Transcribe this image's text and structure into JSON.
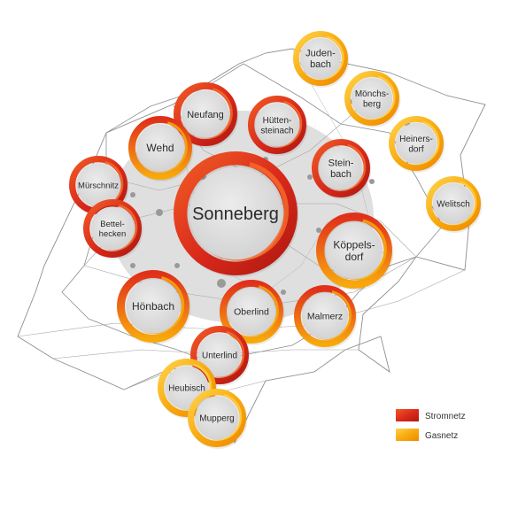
{
  "colors": {
    "strom": "#e2371b",
    "strom_dark": "#b81e10",
    "gas": "#f6a400",
    "gas_light": "#ffc83a",
    "inner_fill": "#dcdcdc",
    "cloud": "#d0d0d0",
    "network_line": "#8e8e8e"
  },
  "nodes": [
    {
      "id": "sonneberg",
      "lines": [
        "Sonneberg"
      ],
      "style": "strom"
    },
    {
      "id": "judenbach",
      "lines": [
        "Juden-",
        "bach"
      ],
      "style": "gas"
    },
    {
      "id": "moenchsberg",
      "lines": [
        "Mönchs-",
        "berg"
      ],
      "style": "gas"
    },
    {
      "id": "heinersdorf",
      "lines": [
        "Heiners-",
        "dorf"
      ],
      "style": "gas"
    },
    {
      "id": "welitsch",
      "lines": [
        "Welitsch"
      ],
      "style": "gas"
    },
    {
      "id": "neufang",
      "lines": [
        "Neufang"
      ],
      "style": "strom"
    },
    {
      "id": "huettensteinach",
      "lines": [
        "Hütten-",
        "steinach"
      ],
      "style": "strom"
    },
    {
      "id": "wehd",
      "lines": [
        "Wehd"
      ],
      "style": "mixed"
    },
    {
      "id": "steinbach",
      "lines": [
        "Stein-",
        "bach"
      ],
      "style": "strom"
    },
    {
      "id": "muerschnitz",
      "lines": [
        "Mürschnitz"
      ],
      "style": "strom"
    },
    {
      "id": "bettelhecken",
      "lines": [
        "Bettel-",
        "hecken"
      ],
      "style": "strom"
    },
    {
      "id": "koeppelsdorf",
      "lines": [
        "Köppels-",
        "dorf"
      ],
      "style": "mixed"
    },
    {
      "id": "hoenbach",
      "lines": [
        "Hönbach"
      ],
      "style": "mixed"
    },
    {
      "id": "oberlind",
      "lines": [
        "Oberlind"
      ],
      "style": "mixed"
    },
    {
      "id": "malmerz",
      "lines": [
        "Malmerz"
      ],
      "style": "mixed"
    },
    {
      "id": "unterlind",
      "lines": [
        "Unterlind"
      ],
      "style": "strom"
    },
    {
      "id": "heubisch",
      "lines": [
        "Heubisch"
      ],
      "style": "gas"
    },
    {
      "id": "mupperg",
      "lines": [
        "Mupperg"
      ],
      "style": "gas"
    }
  ],
  "legend": [
    {
      "label": "Stromnetz",
      "style": "strom"
    },
    {
      "label": "Gasnetz",
      "style": "gas"
    }
  ]
}
